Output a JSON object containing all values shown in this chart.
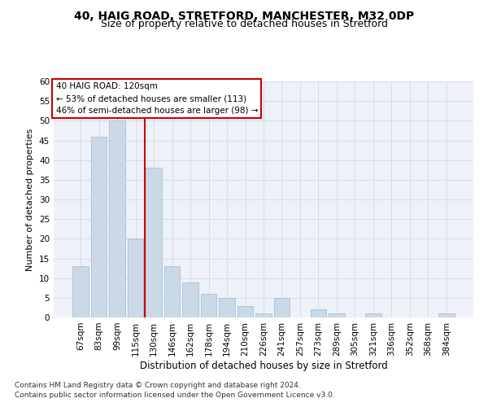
{
  "title1": "40, HAIG ROAD, STRETFORD, MANCHESTER, M32 0DP",
  "title2": "Size of property relative to detached houses in Stretford",
  "xlabel": "Distribution of detached houses by size in Stretford",
  "ylabel": "Number of detached properties",
  "categories": [
    "67sqm",
    "83sqm",
    "99sqm",
    "115sqm",
    "130sqm",
    "146sqm",
    "162sqm",
    "178sqm",
    "194sqm",
    "210sqm",
    "226sqm",
    "241sqm",
    "257sqm",
    "273sqm",
    "289sqm",
    "305sqm",
    "321sqm",
    "336sqm",
    "352sqm",
    "368sqm",
    "384sqm"
  ],
  "values": [
    13,
    46,
    50,
    20,
    38,
    13,
    9,
    6,
    5,
    3,
    1,
    5,
    0,
    2,
    1,
    0,
    1,
    0,
    0,
    0,
    1
  ],
  "bar_color": "#c9d9e8",
  "bar_edge_color": "#a0b8cc",
  "vline_x": 3.5,
  "vline_color": "#cc0000",
  "annotation_box_text": "40 HAIG ROAD: 120sqm\n← 53% of detached houses are smaller (113)\n46% of semi-detached houses are larger (98) →",
  "box_edge_color": "#cc0000",
  "ylim": [
    0,
    60
  ],
  "yticks": [
    0,
    5,
    10,
    15,
    20,
    25,
    30,
    35,
    40,
    45,
    50,
    55,
    60
  ],
  "grid_color": "#d0d8e8",
  "background_color": "#eef2f8",
  "footer1": "Contains HM Land Registry data © Crown copyright and database right 2024.",
  "footer2": "Contains public sector information licensed under the Open Government Licence v3.0.",
  "title1_fontsize": 10,
  "title2_fontsize": 9,
  "xlabel_fontsize": 8.5,
  "ylabel_fontsize": 8,
  "tick_fontsize": 7.5,
  "annotation_fontsize": 7.5,
  "footer_fontsize": 6.5
}
